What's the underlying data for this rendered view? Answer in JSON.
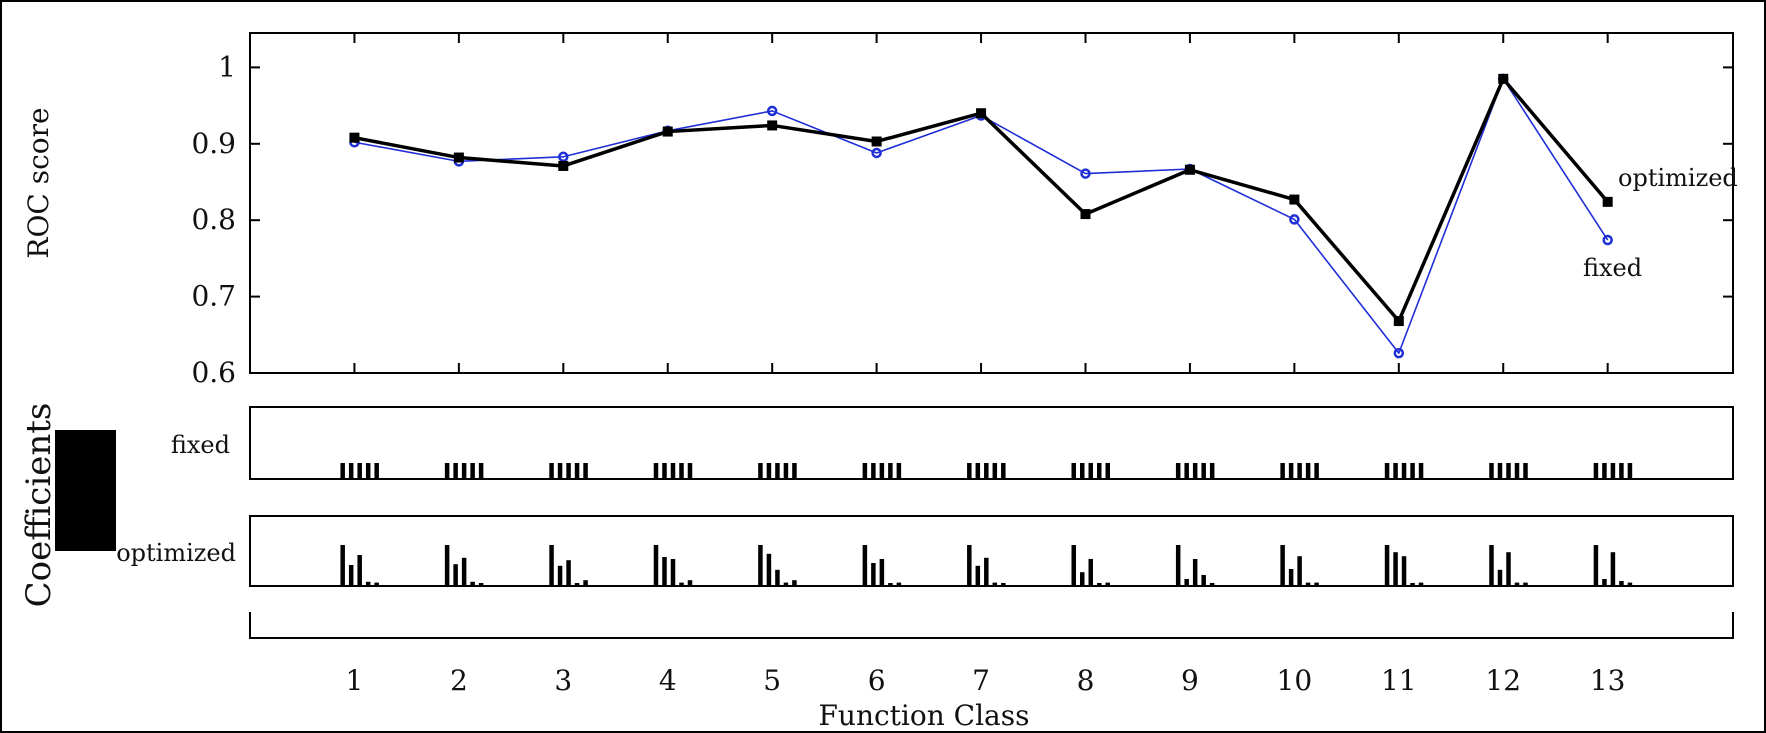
{
  "chart_data": {
    "type": "line",
    "x": [
      1,
      2,
      3,
      4,
      5,
      6,
      7,
      8,
      9,
      10,
      11,
      12,
      13
    ],
    "xlabel": "Function Class",
    "ylabel": "ROC score",
    "ylim": [
      0.6,
      1.045
    ],
    "yticks": [
      0.6,
      0.7,
      0.8,
      0.9,
      1
    ],
    "xlim": [
      0,
      14.2
    ],
    "series": [
      {
        "name": "optimized",
        "color": "#000000",
        "marker": "square",
        "values": [
          0.908,
          0.882,
          0.871,
          0.916,
          0.924,
          0.903,
          0.94,
          0.808,
          0.866,
          0.827,
          0.668,
          0.985,
          0.824
        ]
      },
      {
        "name": "fixed",
        "color": "#1f2fd6",
        "marker": "circle",
        "values": [
          0.902,
          0.877,
          0.883,
          0.917,
          0.943,
          0.888,
          0.937,
          0.861,
          0.867,
          0.801,
          0.626,
          0.985,
          0.774
        ]
      }
    ],
    "coefficients": {
      "title": "Coefficients",
      "rows": [
        {
          "label": "fixed",
          "values": [
            [
              1,
              1,
              1,
              1,
              1
            ],
            [
              1,
              1,
              1,
              1,
              1
            ],
            [
              1,
              1,
              1,
              1,
              1
            ],
            [
              1,
              1,
              1,
              1,
              1
            ],
            [
              1,
              1,
              1,
              1,
              1
            ],
            [
              1,
              1,
              1,
              1,
              1
            ],
            [
              1,
              1,
              1,
              1,
              1
            ],
            [
              1,
              1,
              1,
              1,
              1
            ],
            [
              1,
              1,
              1,
              1,
              1
            ],
            [
              1,
              1,
              1,
              1,
              1
            ],
            [
              1,
              1,
              1,
              1,
              1
            ],
            [
              1,
              1,
              1,
              1,
              1
            ],
            [
              1,
              1,
              1,
              1,
              1
            ]
          ]
        },
        {
          "label": "optimized",
          "values": [
            [
              1.0,
              0.5,
              0.75,
              0.08,
              0.06
            ],
            [
              1.0,
              0.52,
              0.68,
              0.08,
              0.05
            ],
            [
              1.0,
              0.48,
              0.62,
              0.05,
              0.12
            ],
            [
              1.0,
              0.7,
              0.65,
              0.06,
              0.12
            ],
            [
              1.0,
              0.78,
              0.38,
              0.06,
              0.12
            ],
            [
              1.0,
              0.55,
              0.65,
              0.05,
              0.06
            ],
            [
              1.0,
              0.48,
              0.68,
              0.06,
              0.05
            ],
            [
              1.0,
              0.32,
              0.65,
              0.05,
              0.06
            ],
            [
              1.0,
              0.15,
              0.65,
              0.25,
              0.05
            ],
            [
              1.0,
              0.4,
              0.72,
              0.06,
              0.06
            ],
            [
              1.0,
              0.82,
              0.72,
              0.05,
              0.06
            ],
            [
              1.0,
              0.38,
              0.82,
              0.06,
              0.06
            ],
            [
              1.0,
              0.15,
              0.82,
              0.1,
              0.06
            ]
          ]
        }
      ]
    }
  }
}
